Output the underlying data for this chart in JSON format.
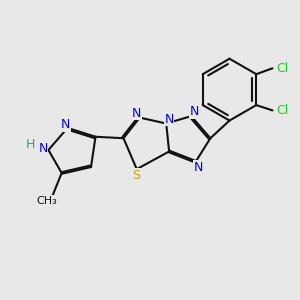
{
  "background_color": "#e8e8e8",
  "bond_color": "#111111",
  "n_color": "#0000ee",
  "s_color": "#bbaa00",
  "cl_color": "#22cc22",
  "h_color": "#4a9090",
  "lw": 1.5,
  "dbo": 0.055,
  "figsize": [
    3.0,
    3.0
  ],
  "dpi": 100,
  "xlim": [
    0.0,
    10.0
  ],
  "ylim": [
    1.5,
    9.5
  ]
}
